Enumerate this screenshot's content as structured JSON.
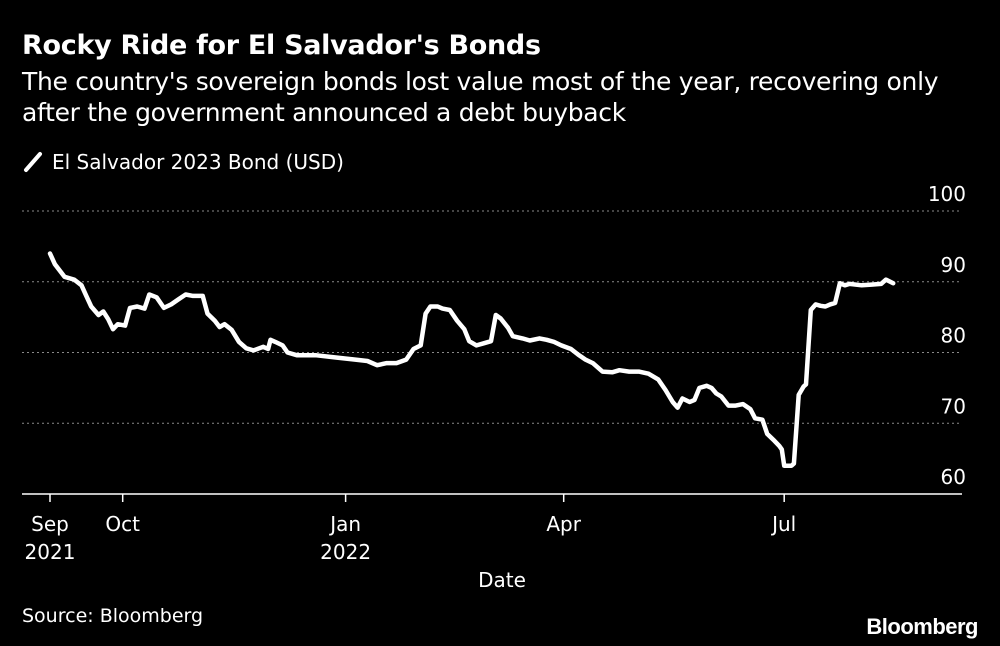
{
  "header": {
    "title": "Rocky Ride for El Salvador's Bonds",
    "subtitle": "The country's sovereign bonds lost value most of the year, recovering only after the government announced a debt buyback"
  },
  "footer": {
    "source": "Source: Bloomberg",
    "brand": "Bloomberg"
  },
  "chart_data": {
    "type": "line",
    "xlabel": "Date",
    "ylabel": "",
    "ylim": [
      60,
      100
    ],
    "yticks": [
      60,
      70,
      80,
      90,
      100
    ],
    "xlim": [
      "2021-09-01",
      "2022-08-31"
    ],
    "xticks": [
      {
        "date": "2021-09-01",
        "label1": "Sep",
        "label2": "2021"
      },
      {
        "date": "2021-10-01",
        "label1": "Oct",
        "label2": ""
      },
      {
        "date": "2022-01-01",
        "label1": "Jan",
        "label2": "2022"
      },
      {
        "date": "2022-04-01",
        "label1": "Apr",
        "label2": ""
      },
      {
        "date": "2022-07-01",
        "label1": "Jul",
        "label2": ""
      }
    ],
    "grid": true,
    "legend_position": "top-left",
    "series": [
      {
        "name": "El Salvador 2023 Bond (USD)",
        "color": "#ffffff",
        "points": [
          [
            "2021-09-01",
            94.0
          ],
          [
            "2021-09-03",
            92.5
          ],
          [
            "2021-09-07",
            90.7
          ],
          [
            "2021-09-11",
            90.3
          ],
          [
            "2021-09-14",
            89.5
          ],
          [
            "2021-09-16",
            88.0
          ],
          [
            "2021-09-18",
            86.5
          ],
          [
            "2021-09-21",
            85.3
          ],
          [
            "2021-09-23",
            85.8
          ],
          [
            "2021-09-25",
            84.7
          ],
          [
            "2021-09-27",
            83.3
          ],
          [
            "2021-09-29",
            84.0
          ],
          [
            "2021-10-02",
            83.8
          ],
          [
            "2021-10-04",
            86.3
          ],
          [
            "2021-10-07",
            86.5
          ],
          [
            "2021-10-10",
            86.2
          ],
          [
            "2021-10-12",
            88.2
          ],
          [
            "2021-10-15",
            87.8
          ],
          [
            "2021-10-18",
            86.3
          ],
          [
            "2021-10-21",
            86.8
          ],
          [
            "2021-10-24",
            87.5
          ],
          [
            "2021-10-27",
            88.2
          ],
          [
            "2021-10-30",
            88.0
          ],
          [
            "2021-11-03",
            88.0
          ],
          [
            "2021-11-05",
            85.5
          ],
          [
            "2021-11-08",
            84.5
          ],
          [
            "2021-11-10",
            83.6
          ],
          [
            "2021-11-12",
            84.0
          ],
          [
            "2021-11-15",
            83.2
          ],
          [
            "2021-11-18",
            81.5
          ],
          [
            "2021-11-21",
            80.6
          ],
          [
            "2021-11-24",
            80.3
          ],
          [
            "2021-11-28",
            80.8
          ],
          [
            "2021-11-30",
            80.5
          ],
          [
            "2021-12-01",
            81.8
          ],
          [
            "2021-12-03",
            81.5
          ],
          [
            "2021-12-06",
            81.0
          ],
          [
            "2021-12-08",
            80.0
          ],
          [
            "2021-12-12",
            79.6
          ],
          [
            "2021-12-20",
            79.6
          ],
          [
            "2021-12-28",
            79.3
          ],
          [
            "2022-01-05",
            79.0
          ],
          [
            "2022-01-10",
            78.8
          ],
          [
            "2022-01-14",
            78.2
          ],
          [
            "2022-01-18",
            78.5
          ],
          [
            "2022-01-22",
            78.5
          ],
          [
            "2022-01-26",
            79.0
          ],
          [
            "2022-01-29",
            80.5
          ],
          [
            "2022-02-01",
            81.0
          ],
          [
            "2022-02-03",
            85.5
          ],
          [
            "2022-02-05",
            86.5
          ],
          [
            "2022-02-08",
            86.5
          ],
          [
            "2022-02-10",
            86.2
          ],
          [
            "2022-02-13",
            86.0
          ],
          [
            "2022-02-16",
            84.5
          ],
          [
            "2022-02-19",
            83.3
          ],
          [
            "2022-02-21",
            81.6
          ],
          [
            "2022-02-24",
            81.0
          ],
          [
            "2022-02-27",
            81.3
          ],
          [
            "2022-03-02",
            81.6
          ],
          [
            "2022-03-04",
            85.3
          ],
          [
            "2022-03-06",
            84.8
          ],
          [
            "2022-03-09",
            83.5
          ],
          [
            "2022-03-11",
            82.3
          ],
          [
            "2022-03-15",
            82.0
          ],
          [
            "2022-03-18",
            81.7
          ],
          [
            "2022-03-22",
            82.0
          ],
          [
            "2022-03-25",
            81.8
          ],
          [
            "2022-03-28",
            81.5
          ],
          [
            "2022-03-31",
            81.0
          ],
          [
            "2022-04-04",
            80.5
          ],
          [
            "2022-04-07",
            79.7
          ],
          [
            "2022-04-10",
            79.0
          ],
          [
            "2022-04-13",
            78.5
          ],
          [
            "2022-04-17",
            77.3
          ],
          [
            "2022-04-21",
            77.2
          ],
          [
            "2022-04-24",
            77.5
          ],
          [
            "2022-04-28",
            77.3
          ],
          [
            "2022-05-02",
            77.3
          ],
          [
            "2022-05-06",
            77.0
          ],
          [
            "2022-05-10",
            76.2
          ],
          [
            "2022-05-13",
            74.7
          ],
          [
            "2022-05-16",
            73.0
          ],
          [
            "2022-05-18",
            72.2
          ],
          [
            "2022-05-20",
            73.5
          ],
          [
            "2022-05-23",
            73.0
          ],
          [
            "2022-05-25",
            73.3
          ],
          [
            "2022-05-27",
            75.0
          ],
          [
            "2022-05-30",
            75.3
          ],
          [
            "2022-06-01",
            75.0
          ],
          [
            "2022-06-03",
            74.2
          ],
          [
            "2022-06-05",
            73.8
          ],
          [
            "2022-06-08",
            72.5
          ],
          [
            "2022-06-11",
            72.5
          ],
          [
            "2022-06-14",
            72.7
          ],
          [
            "2022-06-17",
            72.0
          ],
          [
            "2022-06-19",
            70.7
          ],
          [
            "2022-06-22",
            70.5
          ],
          [
            "2022-06-24",
            68.5
          ],
          [
            "2022-06-27",
            67.5
          ],
          [
            "2022-06-29",
            66.8
          ],
          [
            "2022-06-30",
            66.3
          ],
          [
            "2022-07-01",
            64.0
          ],
          [
            "2022-07-04",
            64.0
          ],
          [
            "2022-07-05",
            64.3
          ],
          [
            "2022-07-07",
            74.0
          ],
          [
            "2022-07-09",
            75.2
          ],
          [
            "2022-07-10",
            75.5
          ],
          [
            "2022-07-12",
            86.0
          ],
          [
            "2022-07-14",
            86.8
          ],
          [
            "2022-07-16",
            86.6
          ],
          [
            "2022-07-18",
            86.5
          ],
          [
            "2022-07-20",
            86.8
          ],
          [
            "2022-07-22",
            87.0
          ],
          [
            "2022-07-24",
            89.8
          ],
          [
            "2022-07-26",
            89.5
          ],
          [
            "2022-07-28",
            89.7
          ],
          [
            "2022-08-02",
            89.5
          ],
          [
            "2022-08-06",
            89.6
          ],
          [
            "2022-08-10",
            89.7
          ],
          [
            "2022-08-12",
            90.3
          ],
          [
            "2022-08-15",
            89.8
          ]
        ]
      }
    ]
  }
}
